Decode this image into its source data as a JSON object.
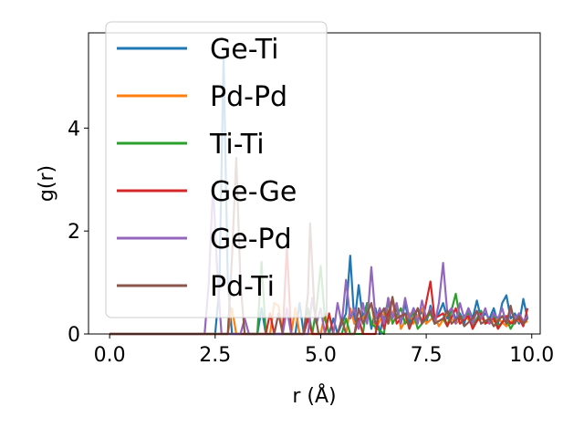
{
  "chart_data": {
    "type": "line",
    "title": "",
    "xlabel": "r (Å)",
    "ylabel": "g(r)",
    "xlim": [
      -0.5,
      10.2
    ],
    "ylim": [
      0,
      5.85
    ],
    "xticks": [
      0.0,
      2.5,
      5.0,
      7.5,
      10.0
    ],
    "xtick_labels": [
      "0.0",
      "2.5",
      "5.0",
      "7.5",
      "10.0"
    ],
    "yticks": [
      0,
      2,
      4
    ],
    "ytick_labels": [
      "0",
      "2",
      "4"
    ],
    "grid": false,
    "legend_position": "upper-left",
    "series": [
      {
        "name": "Ge-Ti",
        "color": "#1f77b4",
        "points": [
          [
            0,
            0
          ],
          [
            2.5,
            0
          ],
          [
            2.6,
            0.9
          ],
          [
            2.7,
            5.4
          ],
          [
            2.8,
            1.0
          ],
          [
            2.9,
            0
          ],
          [
            3.5,
            0
          ],
          [
            3.6,
            0.5
          ],
          [
            3.7,
            0
          ],
          [
            4.4,
            0
          ],
          [
            4.5,
            0.6
          ],
          [
            4.6,
            0
          ],
          [
            5.2,
            0
          ],
          [
            5.3,
            0.3
          ],
          [
            5.4,
            0
          ],
          [
            5.6,
            0.4
          ],
          [
            5.7,
            1.52
          ],
          [
            5.8,
            0.2
          ],
          [
            5.9,
            0.95
          ],
          [
            6.0,
            0.3
          ],
          [
            6.1,
            0.6
          ],
          [
            6.2,
            0.1
          ],
          [
            6.3,
            0.5
          ],
          [
            6.4,
            0
          ],
          [
            6.5,
            0.4
          ],
          [
            6.6,
            0.6
          ],
          [
            6.7,
            0.3
          ],
          [
            6.8,
            0.5
          ],
          [
            6.9,
            0.2
          ],
          [
            7.0,
            0.6
          ],
          [
            7.1,
            0.2
          ],
          [
            7.2,
            0.5
          ],
          [
            7.3,
            0.3
          ],
          [
            7.4,
            0.45
          ],
          [
            7.5,
            0.2
          ],
          [
            7.6,
            0.55
          ],
          [
            7.7,
            0.3
          ],
          [
            7.8,
            0.4
          ],
          [
            7.9,
            0.6
          ],
          [
            8.0,
            0.3
          ],
          [
            8.1,
            0.5
          ],
          [
            8.2,
            0.3
          ],
          [
            8.3,
            0.4
          ],
          [
            8.4,
            0.2
          ],
          [
            8.5,
            0.5
          ],
          [
            8.6,
            0.3
          ],
          [
            8.7,
            0.65
          ],
          [
            8.8,
            0.3
          ],
          [
            8.9,
            0.4
          ],
          [
            9.0,
            0.3
          ],
          [
            9.1,
            0.5
          ],
          [
            9.2,
            0.2
          ],
          [
            9.3,
            0.6
          ],
          [
            9.4,
            0.75
          ],
          [
            9.5,
            0.3
          ],
          [
            9.6,
            0.4
          ],
          [
            9.7,
            0.2
          ],
          [
            9.8,
            0.68
          ],
          [
            9.9,
            0.3
          ]
        ]
      },
      {
        "name": "Pd-Pd",
        "color": "#ff7f0e",
        "points": [
          [
            0,
            0
          ],
          [
            2.8,
            0
          ],
          [
            2.9,
            0.5
          ],
          [
            3.0,
            0
          ],
          [
            3.8,
            0
          ],
          [
            3.9,
            0.6
          ],
          [
            4.0,
            0.55
          ],
          [
            4.1,
            0
          ],
          [
            4.3,
            0
          ],
          [
            4.4,
            0.5
          ],
          [
            4.5,
            0
          ],
          [
            5.0,
            0
          ],
          [
            5.1,
            0.4
          ],
          [
            5.2,
            0
          ],
          [
            5.6,
            0
          ],
          [
            5.7,
            0.5
          ],
          [
            5.8,
            0.2
          ],
          [
            6.0,
            0.3
          ],
          [
            6.2,
            0.6
          ],
          [
            6.3,
            0.1
          ],
          [
            6.5,
            0.4
          ],
          [
            6.6,
            0.2
          ],
          [
            6.8,
            0.6
          ],
          [
            6.9,
            0.1
          ],
          [
            7.1,
            0.4
          ],
          [
            7.2,
            0.2
          ],
          [
            7.4,
            0.5
          ],
          [
            7.5,
            0.2
          ],
          [
            7.7,
            0.35
          ],
          [
            7.8,
            0.15
          ],
          [
            8.0,
            0.4
          ],
          [
            8.2,
            0.2
          ],
          [
            8.4,
            0.35
          ],
          [
            8.6,
            0.2
          ],
          [
            8.8,
            0.3
          ],
          [
            9.0,
            0.2
          ],
          [
            9.2,
            0.3
          ],
          [
            9.4,
            0.15
          ],
          [
            9.6,
            0.3
          ],
          [
            9.8,
            0.2
          ],
          [
            9.9,
            0.25
          ]
        ]
      },
      {
        "name": "Ti-Ti",
        "color": "#2ca02c",
        "points": [
          [
            0,
            0
          ],
          [
            3.5,
            0
          ],
          [
            3.6,
            1.4
          ],
          [
            3.7,
            0
          ],
          [
            4.6,
            0
          ],
          [
            4.7,
            0.5
          ],
          [
            4.8,
            0
          ],
          [
            4.9,
            0.5
          ],
          [
            5.0,
            1.32
          ],
          [
            5.1,
            0.3
          ],
          [
            5.2,
            0
          ],
          [
            5.5,
            0
          ],
          [
            5.6,
            0.3
          ],
          [
            5.7,
            0
          ],
          [
            6.0,
            0
          ],
          [
            6.1,
            0.6
          ],
          [
            6.2,
            0.2
          ],
          [
            6.5,
            0
          ],
          [
            6.6,
            0.7
          ],
          [
            6.7,
            0.2
          ],
          [
            6.9,
            0.5
          ],
          [
            7.0,
            0.2
          ],
          [
            7.2,
            0.4
          ],
          [
            7.3,
            0.1
          ],
          [
            7.5,
            0.3
          ],
          [
            7.6,
            0.4
          ],
          [
            7.7,
            0.2
          ],
          [
            7.9,
            0.3
          ],
          [
            8.0,
            0.15
          ],
          [
            8.2,
            0.78
          ],
          [
            8.3,
            0.3
          ],
          [
            8.5,
            0.4
          ],
          [
            8.6,
            0.15
          ],
          [
            8.8,
            0.45
          ],
          [
            8.9,
            0.2
          ],
          [
            9.1,
            0.35
          ],
          [
            9.2,
            0.15
          ],
          [
            9.4,
            0.3
          ],
          [
            9.5,
            0.1
          ],
          [
            9.7,
            0.4
          ],
          [
            9.8,
            0.2
          ],
          [
            9.9,
            0.3
          ]
        ]
      },
      {
        "name": "Ge-Ge",
        "color": "#d62728",
        "points": [
          [
            0,
            0
          ],
          [
            3.7,
            0
          ],
          [
            3.8,
            0.4
          ],
          [
            3.9,
            0
          ],
          [
            4.1,
            0
          ],
          [
            4.2,
            1.7
          ],
          [
            4.3,
            0
          ],
          [
            4.6,
            0
          ],
          [
            4.7,
            0.3
          ],
          [
            4.8,
            0
          ],
          [
            5.1,
            0
          ],
          [
            5.2,
            0.4
          ],
          [
            5.3,
            0
          ],
          [
            5.8,
            0
          ],
          [
            5.9,
            0.3
          ],
          [
            6.0,
            0
          ],
          [
            6.3,
            0
          ],
          [
            6.4,
            0.5
          ],
          [
            6.5,
            0.1
          ],
          [
            6.7,
            0.7
          ],
          [
            6.8,
            0.2
          ],
          [
            7.0,
            0.4
          ],
          [
            7.1,
            0.1
          ],
          [
            7.3,
            0.5
          ],
          [
            7.4,
            0.2
          ],
          [
            7.6,
            1.02
          ],
          [
            7.7,
            0.3
          ],
          [
            7.9,
            0.4
          ],
          [
            8.0,
            0.15
          ],
          [
            8.2,
            0.5
          ],
          [
            8.3,
            0.2
          ],
          [
            8.5,
            0.35
          ],
          [
            8.6,
            0.1
          ],
          [
            8.8,
            0.4
          ],
          [
            8.9,
            0.2
          ],
          [
            9.1,
            0.3
          ],
          [
            9.2,
            0.1
          ],
          [
            9.4,
            0.35
          ],
          [
            9.5,
            0.2
          ],
          [
            9.7,
            0.3
          ],
          [
            9.8,
            0.15
          ],
          [
            9.9,
            0.5
          ]
        ]
      },
      {
        "name": "Ge-Pd",
        "color": "#9467bd",
        "points": [
          [
            0,
            0
          ],
          [
            2.25,
            0
          ],
          [
            2.35,
            1.0
          ],
          [
            2.45,
            2.9
          ],
          [
            2.55,
            1.2
          ],
          [
            2.65,
            0
          ],
          [
            3.1,
            0
          ],
          [
            3.2,
            0.3
          ],
          [
            3.3,
            0
          ],
          [
            4.1,
            0
          ],
          [
            4.2,
            0.5
          ],
          [
            4.3,
            0
          ],
          [
            4.7,
            0
          ],
          [
            4.8,
            0.7
          ],
          [
            4.9,
            0.2
          ],
          [
            5.0,
            0.5
          ],
          [
            5.1,
            0
          ],
          [
            5.3,
            0
          ],
          [
            5.4,
            0.6
          ],
          [
            5.5,
            0.2
          ],
          [
            5.6,
            1.05
          ],
          [
            5.7,
            0.3
          ],
          [
            5.8,
            0.5
          ],
          [
            5.9,
            0.1
          ],
          [
            6.0,
            0.6
          ],
          [
            6.1,
            0.2
          ],
          [
            6.2,
            1.3
          ],
          [
            6.3,
            0.3
          ],
          [
            6.4,
            0.5
          ],
          [
            6.5,
            0.2
          ],
          [
            6.6,
            0.7
          ],
          [
            6.7,
            0.3
          ],
          [
            6.8,
            0.6
          ],
          [
            6.9,
            0.2
          ],
          [
            7.0,
            0.7
          ],
          [
            7.1,
            0.3
          ],
          [
            7.2,
            0.5
          ],
          [
            7.3,
            0.2
          ],
          [
            7.4,
            0.65
          ],
          [
            7.5,
            0.3
          ],
          [
            7.6,
            0.5
          ],
          [
            7.7,
            0.2
          ],
          [
            7.8,
            0.6
          ],
          [
            7.9,
            1.38
          ],
          [
            8.0,
            0.4
          ],
          [
            8.1,
            0.5
          ],
          [
            8.2,
            0.2
          ],
          [
            8.3,
            0.6
          ],
          [
            8.4,
            0.3
          ],
          [
            8.5,
            0.5
          ],
          [
            8.6,
            0.2
          ],
          [
            8.7,
            0.45
          ],
          [
            8.8,
            0.3
          ],
          [
            8.9,
            0.5
          ],
          [
            9.0,
            0.2
          ],
          [
            9.1,
            0.4
          ],
          [
            9.2,
            0.3
          ],
          [
            9.3,
            0.5
          ],
          [
            9.4,
            0.2
          ],
          [
            9.5,
            0.45
          ],
          [
            9.6,
            0.3
          ],
          [
            9.7,
            0.4
          ],
          [
            9.8,
            0.25
          ],
          [
            9.9,
            0.35
          ]
        ]
      },
      {
        "name": "Pd-Ti",
        "color": "#8c564b",
        "points": [
          [
            0,
            0
          ],
          [
            2.8,
            0
          ],
          [
            2.9,
            1.5
          ],
          [
            3.0,
            3.42
          ],
          [
            3.1,
            1.0
          ],
          [
            3.2,
            0
          ],
          [
            3.9,
            0
          ],
          [
            4.0,
            0.4
          ],
          [
            4.1,
            0
          ],
          [
            4.6,
            0
          ],
          [
            4.7,
            0.8
          ],
          [
            4.75,
            2.15
          ],
          [
            4.85,
            0.5
          ],
          [
            4.95,
            0
          ],
          [
            5.4,
            0
          ],
          [
            5.5,
            0.3
          ],
          [
            5.6,
            0
          ],
          [
            5.8,
            0
          ],
          [
            5.9,
            0.5
          ],
          [
            6.0,
            0.2
          ],
          [
            6.2,
            0.6
          ],
          [
            6.3,
            0.2
          ],
          [
            6.5,
            0.5
          ],
          [
            6.6,
            0.2
          ],
          [
            6.7,
            0.72
          ],
          [
            6.8,
            0.3
          ],
          [
            7.0,
            0.4
          ],
          [
            7.1,
            0.15
          ],
          [
            7.3,
            0.5
          ],
          [
            7.4,
            0.2
          ],
          [
            7.6,
            0.45
          ],
          [
            7.7,
            0.2
          ],
          [
            7.9,
            0.3
          ],
          [
            8.0,
            0.45
          ],
          [
            8.1,
            0.2
          ],
          [
            8.3,
            0.35
          ],
          [
            8.4,
            0.15
          ],
          [
            8.6,
            0.3
          ],
          [
            8.7,
            0.45
          ],
          [
            8.8,
            0.2
          ],
          [
            9.0,
            0.3
          ],
          [
            9.1,
            0.15
          ],
          [
            9.3,
            0.35
          ],
          [
            9.4,
            0.2
          ],
          [
            9.5,
            0.55
          ],
          [
            9.6,
            0.2
          ],
          [
            9.7,
            0.35
          ],
          [
            9.8,
            0.2
          ],
          [
            9.9,
            0.3
          ]
        ]
      }
    ]
  }
}
